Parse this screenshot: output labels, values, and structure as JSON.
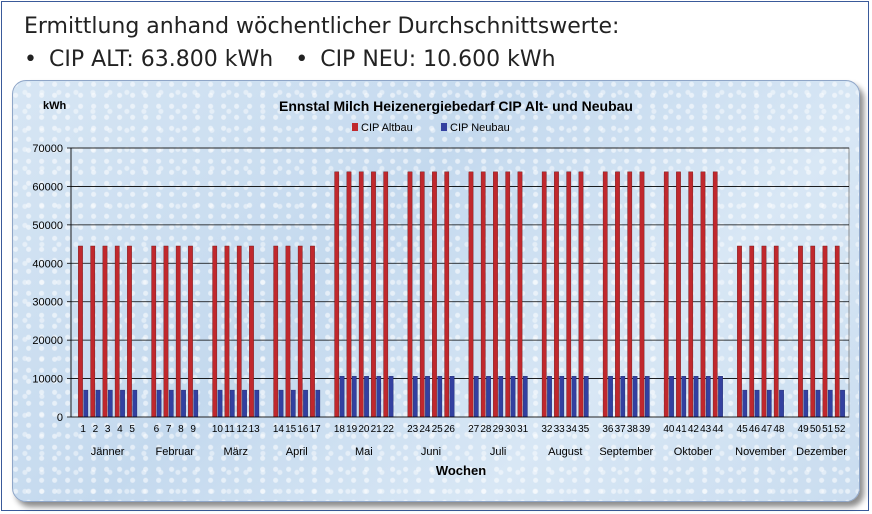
{
  "header": {
    "title": "Ermittlung anhand wöchentlicher Durchschnittswerte:",
    "bullets": [
      {
        "bullet": "•",
        "text": "CIP ALT: 63.800 kWh"
      },
      {
        "bullet": "•",
        "text": "CIP NEU: 10.600 kWh"
      }
    ]
  },
  "colors": {
    "altbau": "#c0282d",
    "neubau": "#3340a0",
    "axis_text": "#000000"
  },
  "chart_data": {
    "type": "bar",
    "title": "Ennstal Milch Heizenergiebedarf CIP Alt- und Neubau",
    "ylabel": "kWh",
    "xlabel": "Wochen",
    "ylim": [
      0,
      70000
    ],
    "yticks": [
      0,
      10000,
      20000,
      30000,
      40000,
      50000,
      60000,
      70000
    ],
    "grid": true,
    "legend_position": "top-center",
    "months": [
      {
        "name": "Jänner",
        "weeks": [
          1,
          2,
          3,
          4,
          5
        ],
        "alt": 44500,
        "neu": 7000
      },
      {
        "name": "Februar",
        "weeks": [
          6,
          7,
          8,
          9
        ],
        "alt": 44500,
        "neu": 7000
      },
      {
        "name": "März",
        "weeks": [
          10,
          11,
          12,
          13
        ],
        "alt": 44500,
        "neu": 7000
      },
      {
        "name": "April",
        "weeks": [
          14,
          15,
          16,
          17
        ],
        "alt": 44500,
        "neu": 7000
      },
      {
        "name": "Mai",
        "weeks": [
          18,
          19,
          20,
          21,
          22
        ],
        "alt": 63800,
        "neu": 10600
      },
      {
        "name": "Juni",
        "weeks": [
          23,
          24,
          25,
          26
        ],
        "alt": 63800,
        "neu": 10600
      },
      {
        "name": "Juli",
        "weeks": [
          27,
          28,
          29,
          30,
          31
        ],
        "alt": 63800,
        "neu": 10600
      },
      {
        "name": "August",
        "weeks": [
          32,
          33,
          34,
          35
        ],
        "alt": 63800,
        "neu": 10600
      },
      {
        "name": "September",
        "weeks": [
          36,
          37,
          38,
          39
        ],
        "alt": 63800,
        "neu": 10600
      },
      {
        "name": "Oktober",
        "weeks": [
          40,
          41,
          42,
          43,
          44
        ],
        "alt": 63800,
        "neu": 10600
      },
      {
        "name": "November",
        "weeks": [
          45,
          46,
          47,
          48
        ],
        "alt": 44500,
        "neu": 7000
      },
      {
        "name": "Dezember",
        "weeks": [
          49,
          50,
          51,
          52
        ],
        "alt": 44500,
        "neu": 7000
      }
    ],
    "series": [
      {
        "name": "CIP Altbau",
        "key": "alt"
      },
      {
        "name": "CIP Neubau",
        "key": "neu"
      }
    ]
  }
}
